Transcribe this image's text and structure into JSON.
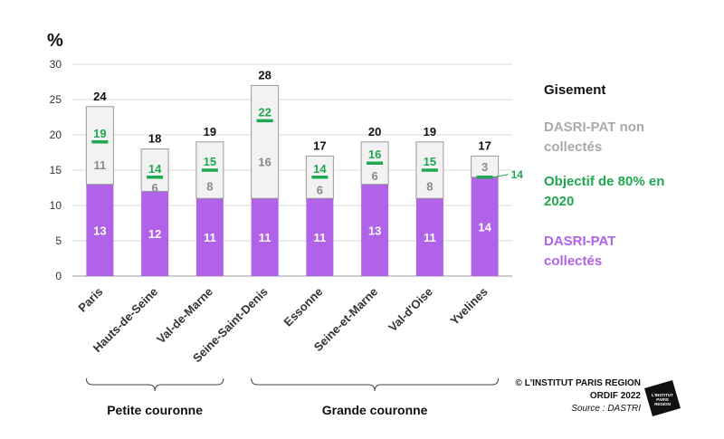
{
  "chart_data": {
    "type": "bar",
    "stacked": true,
    "ylabel": "%",
    "ylim": [
      0,
      30
    ],
    "yticks": [
      0,
      5,
      10,
      15,
      20,
      25,
      30
    ],
    "grid": true,
    "categories": [
      "Paris",
      "Hauts-de-Seine",
      "Val-de-Marne",
      "Seine-Saint-Denis",
      "Essonne",
      "Seine-et-Marne",
      "Val-d'Oise",
      "Yvelines"
    ],
    "series": [
      {
        "name": "DASRI-PAT collectés",
        "values": [
          13,
          12,
          11,
          11,
          11,
          13,
          11,
          14
        ],
        "labels": [
          "13",
          "12",
          "11",
          "11",
          "11",
          "13",
          "11",
          "14"
        ],
        "color": "#b062e8"
      },
      {
        "name": "DASRI-PAT non collectés",
        "values": [
          11,
          6,
          8,
          16,
          6,
          6,
          8,
          3
        ],
        "labels": [
          "11",
          "6",
          "8",
          "16",
          "6",
          "6",
          "8",
          "3"
        ],
        "color": "#f2f2f2"
      }
    ],
    "totals": [
      24,
      18,
      19,
      28,
      17,
      20,
      19,
      17
    ],
    "total_labels": [
      "24",
      "18",
      "19",
      "28",
      "17",
      "20",
      "19",
      "17"
    ],
    "target": {
      "name": "Objectif de 80% en 2020",
      "values": [
        19,
        14,
        15,
        22,
        14,
        16,
        15,
        14
      ],
      "labels": [
        "19",
        "14",
        "15",
        "22",
        "14",
        "16",
        "15",
        "14"
      ],
      "color": "#1fa84f"
    },
    "groups": [
      {
        "label": "Petite couronne",
        "from": 0,
        "to": 2
      },
      {
        "label": "Grande  couronne",
        "from": 3,
        "to": 7
      }
    ],
    "legend": {
      "title": "Gisement",
      "noncollected": "DASRI-PAT non collectés",
      "target": "Objectif de 80% en 2020",
      "collected": "DASRI-PAT collectés",
      "noncollected_color": "#aaaaaa",
      "target_color": "#1fa84f",
      "collected_color": "#b062e8",
      "position": "right"
    }
  },
  "credits": {
    "line1": "© L'INSTITUT PARIS REGION",
    "line2": "ORDIF 2022",
    "line3": "Source : DASTRI"
  },
  "logo": {
    "line1": "L'INSTITUT",
    "line2": "PARIS",
    "line3": "REGION"
  }
}
